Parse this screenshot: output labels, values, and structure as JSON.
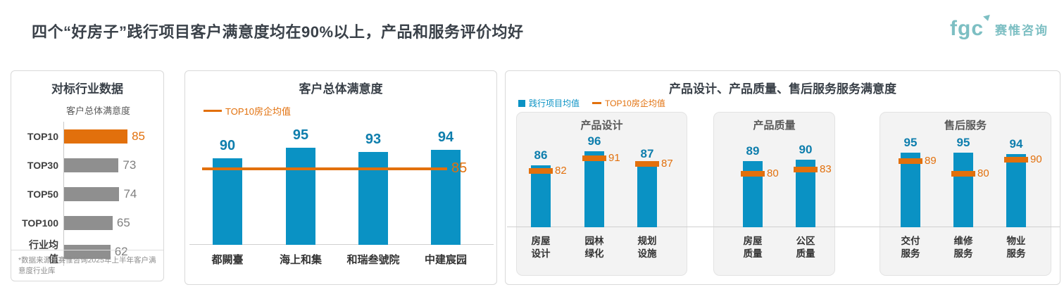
{
  "page": {
    "title": "四个“好房子”践行项目客户满意度均在90%以上，产品和服务评价均好",
    "logo": {
      "abbr": "fgc",
      "company": "赛惟咨询"
    }
  },
  "colors": {
    "blue_bar": "#0a92c4",
    "blue_label": "#0e7ead",
    "orange": "#e2700c",
    "gray_bar": "#8f8f8f",
    "gray_value": "#7f7f7f",
    "teal_logo": "#7dbfc3"
  },
  "chart_data": [
    {
      "type": "bar",
      "orientation": "horizontal",
      "title": "对标行业数据",
      "subtitle": "客户总体满意度",
      "categories": [
        "TOP10",
        "TOP30",
        "TOP50",
        "TOP100",
        "行业均值"
      ],
      "values": [
        85,
        73,
        74,
        65,
        62
      ],
      "bar_colors": [
        "#e2700c",
        "#8f8f8f",
        "#8f8f8f",
        "#8f8f8f",
        "#8f8f8f"
      ],
      "highlight_category": "TOP10",
      "footnote": "*数据来源于赛惟咨询2025年上半年客户满意度行业库"
    },
    {
      "type": "bar",
      "orientation": "vertical",
      "title": "客户总体满意度",
      "categories": [
        "都闕臺",
        "海上和集",
        "和瑞叁號院",
        "中建宸园"
      ],
      "values": [
        90,
        95,
        93,
        94
      ],
      "bar_color": "#0a92c4",
      "reference_line": {
        "label": "TOP10房企均值",
        "value": 85,
        "color": "#e2700c"
      },
      "legend_position": "top-left"
    },
    {
      "type": "grouped-bar",
      "title": "产品设计、产品质量、售后服务服务满意度",
      "series": [
        {
          "name": "践行项目均值",
          "color": "#0a92c4",
          "style": "bar"
        },
        {
          "name": "TOP10房企均值",
          "color": "#e2700c",
          "style": "tick-marker"
        }
      ],
      "groups": [
        {
          "title": "产品设计",
          "categories": [
            "房屋设计",
            "园林绿化",
            "规划设施"
          ],
          "project_values": [
            86,
            96,
            87
          ],
          "top10_values": [
            82,
            91,
            87
          ]
        },
        {
          "title": "产品质量",
          "categories": [
            "房屋质量",
            "公区质量"
          ],
          "project_values": [
            89,
            90
          ],
          "top10_values": [
            80,
            83
          ]
        },
        {
          "title": "售后服务",
          "categories": [
            "交付服务",
            "维修服务",
            "物业服务"
          ],
          "project_values": [
            95,
            95,
            94
          ],
          "top10_values": [
            89,
            80,
            90
          ]
        }
      ]
    }
  ]
}
